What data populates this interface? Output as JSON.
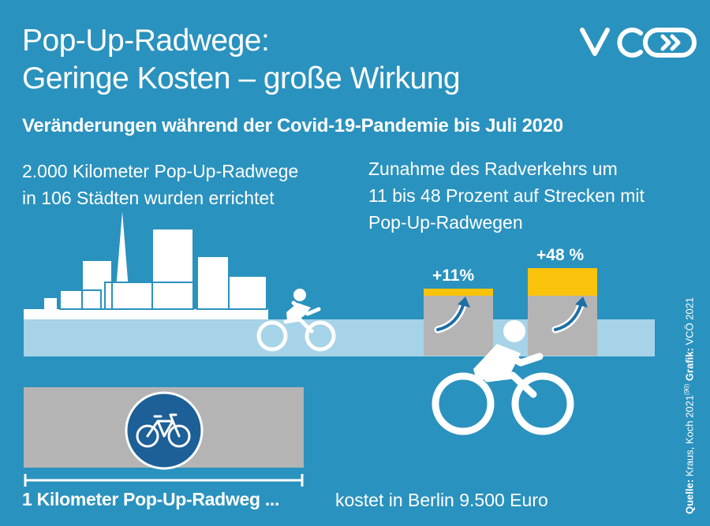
{
  "title": {
    "line1": "Pop-Up-Radwege:",
    "line2": "Geringe Kosten – große Wirkung"
  },
  "logo": {
    "text": "VCÖ",
    "icon": "vco-logo-icon"
  },
  "subtitle": "Veränderungen während der Covid-19-Pandemie bis Juli 2020",
  "stat_left": {
    "line1": "2.000 Kilometer Pop-Up-Radwege",
    "line2": "in 106 Städten wurden errichtet"
  },
  "stat_right": {
    "line1": "Zunahme des Radverkehrs um",
    "line2": "11 bis 48 Prozent auf Strecken mit",
    "line3": "Pop-Up-Radwegen"
  },
  "increase_low": "+11%",
  "increase_high": "+48 %",
  "increase_values_percent": [
    11,
    48
  ],
  "footer": {
    "bold": "1 Kilometer Pop-Up-Radweg ...",
    "regular": "kostet in Berlin 9.500 Euro"
  },
  "source": {
    "label": "Quelle:",
    "text": "Kraus, Koch 2021",
    "superscript": "(90)",
    "graphic_label": "Grafik:",
    "graphic_text": "VCÖ 2021"
  },
  "colors": {
    "background": "#2a92be",
    "road": "#a6d3e8",
    "concrete": "#b4b4b4",
    "highlight": "#f9c30c",
    "bike_sign": "#1d5f97",
    "text": "#ffffff"
  }
}
